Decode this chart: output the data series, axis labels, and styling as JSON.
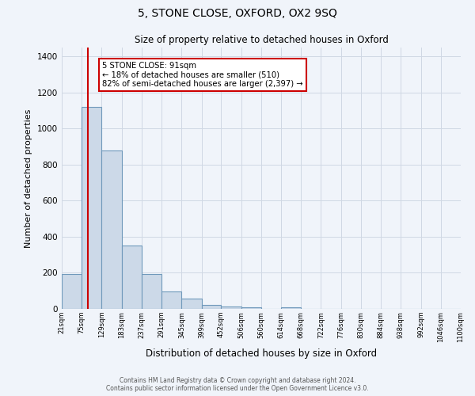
{
  "title": "5, STONE CLOSE, OXFORD, OX2 9SQ",
  "subtitle": "Size of property relative to detached houses in Oxford",
  "xlabel": "Distribution of detached houses by size in Oxford",
  "ylabel": "Number of detached properties",
  "bar_values": [
    193,
    1120,
    880,
    350,
    193,
    95,
    55,
    22,
    15,
    10,
    0,
    10,
    0,
    0,
    0,
    0,
    0,
    0,
    0,
    0
  ],
  "bin_edges": [
    21,
    75,
    129,
    183,
    237,
    291,
    345,
    399,
    452,
    506,
    560,
    614,
    668,
    722,
    776,
    830,
    884,
    938,
    992,
    1046,
    1100
  ],
  "tick_labels": [
    "21sqm",
    "75sqm",
    "129sqm",
    "183sqm",
    "237sqm",
    "291sqm",
    "345sqm",
    "399sqm",
    "452sqm",
    "506sqm",
    "560sqm",
    "614sqm",
    "668sqm",
    "722sqm",
    "776sqm",
    "830sqm",
    "884sqm",
    "938sqm",
    "992sqm",
    "1046sqm",
    "1100sqm"
  ],
  "bar_color": "#ccd9e8",
  "bar_edge_color": "#7099bb",
  "grid_color": "#d0d8e4",
  "property_line_x": 91,
  "property_line_color": "#cc0000",
  "annotation_text": "5 STONE CLOSE: 91sqm\n← 18% of detached houses are smaller (510)\n82% of semi-detached houses are larger (2,397) →",
  "annotation_box_color": "#ffffff",
  "annotation_border_color": "#cc0000",
  "ylim": [
    0,
    1450
  ],
  "yticks": [
    0,
    200,
    400,
    600,
    800,
    1000,
    1200,
    1400
  ],
  "footer_line1": "Contains HM Land Registry data © Crown copyright and database right 2024.",
  "footer_line2": "Contains public sector information licensed under the Open Government Licence v3.0.",
  "background_color": "#f0f4fa"
}
